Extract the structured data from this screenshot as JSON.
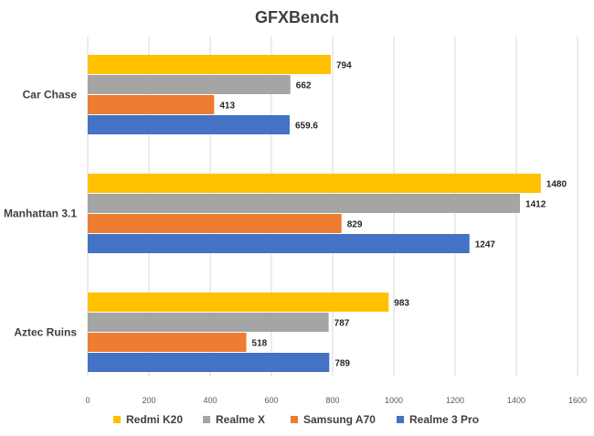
{
  "chart_data": {
    "type": "bar",
    "orientation": "horizontal",
    "title": "GFXBench",
    "categories": [
      "Car Chase",
      "Manhattan 3.1",
      "Aztec Ruins"
    ],
    "series": [
      {
        "name": "Redmi K20",
        "color": "#FFC000",
        "values": [
          794,
          1480,
          983
        ],
        "labels": [
          "794",
          "1480",
          "983"
        ]
      },
      {
        "name": "Realme X",
        "color": "#A5A5A5",
        "values": [
          662,
          1412,
          787
        ],
        "labels": [
          "662",
          "1412",
          "787"
        ]
      },
      {
        "name": "Samsung A70",
        "color": "#ED7D31",
        "values": [
          413,
          829,
          518
        ],
        "labels": [
          "413",
          "829",
          "518"
        ]
      },
      {
        "name": "Realme 3 Pro",
        "color": "#4472C4",
        "values": [
          659.6,
          1247,
          789
        ],
        "labels": [
          "659.6",
          "1247",
          "789"
        ]
      }
    ],
    "xlim": [
      0,
      1600
    ],
    "xticks": [
      0,
      200,
      400,
      600,
      800,
      1000,
      1200,
      1400,
      1600
    ],
    "grid": true,
    "legend_position": "bottom"
  }
}
